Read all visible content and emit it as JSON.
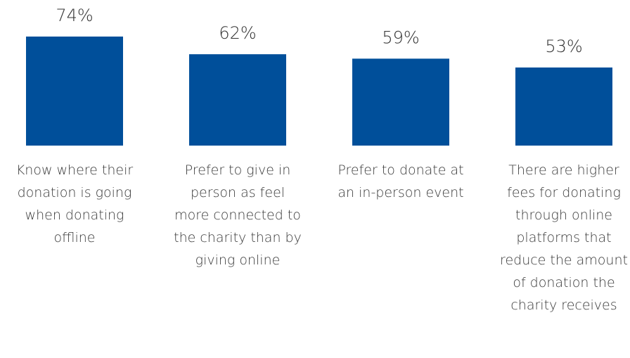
{
  "chart_data": {
    "type": "bar",
    "categories": [
      "Know where their donation is going when donating offline",
      "Prefer to give in person as feel more connected to the charity than by giving online",
      "Prefer to donate at an in-person event",
      "There are higher fees for donating through online platforms that reduce the amount of donation the charity receives"
    ],
    "values": [
      74,
      62,
      59,
      53
    ],
    "value_labels": [
      "74%",
      "62%",
      "59%",
      "53%"
    ],
    "color": "#004f9a"
  }
}
